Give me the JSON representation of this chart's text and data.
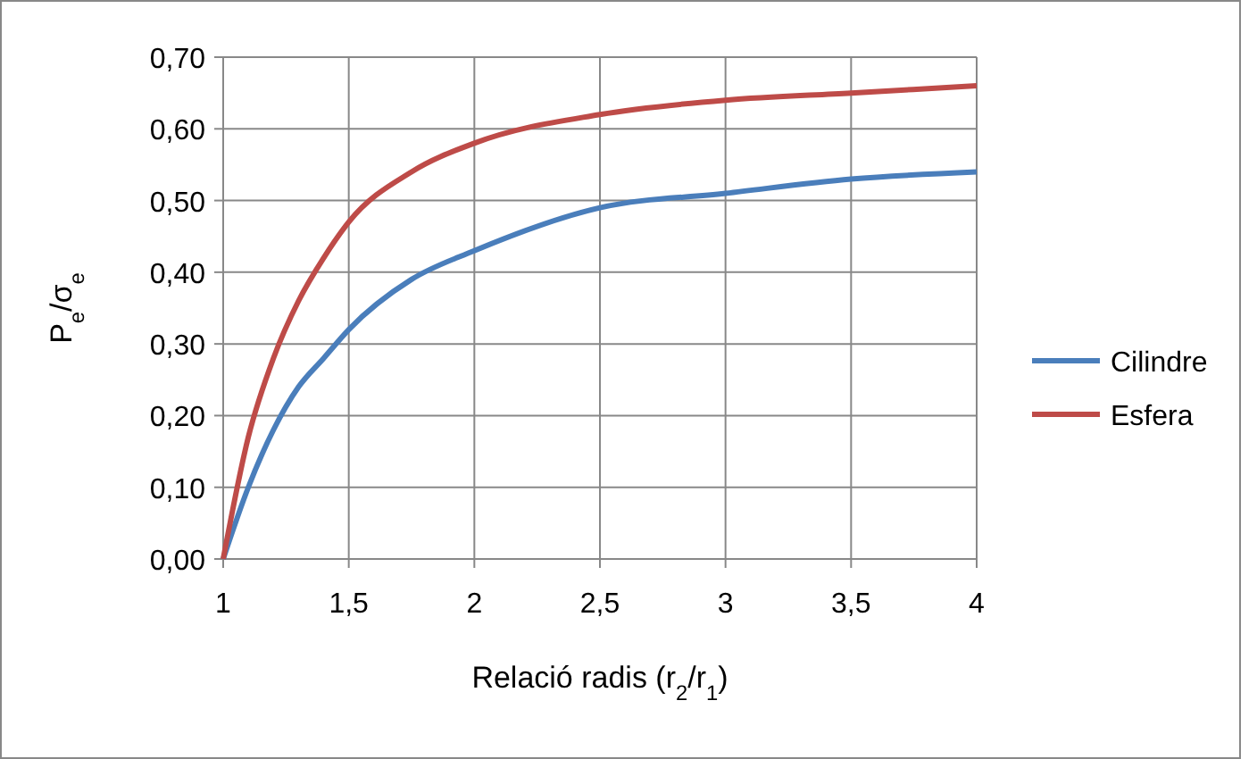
{
  "chart_data": {
    "type": "line",
    "xlabel": "Relació radis (r$_{2}$/r$_{1}$)",
    "ylabel": "P$_{e}$/σ$_{e}$",
    "x": [
      1,
      1.1,
      1.2,
      1.3,
      1.4,
      1.5,
      1.75,
      2,
      2.5,
      3,
      3.5,
      4
    ],
    "series": [
      {
        "name": "Cilindre",
        "color": "#4a7ebb",
        "values": [
          0,
          0.1,
          0.18,
          0.24,
          0.28,
          0.32,
          0.39,
          0.43,
          0.49,
          0.51,
          0.53,
          0.54
        ]
      },
      {
        "name": "Esfera",
        "color": "#be4b48",
        "values": [
          0,
          0.17,
          0.28,
          0.36,
          0.42,
          0.47,
          0.54,
          0.58,
          0.62,
          0.64,
          0.65,
          0.66
        ]
      }
    ],
    "xlim": [
      1,
      4
    ],
    "xticks": [
      1,
      {
        "value": 1.5,
        "label": "1,5"
      },
      2,
      {
        "value": 2.5,
        "label": "2,5"
      },
      3,
      {
        "value": 3.5,
        "label": "3,5"
      },
      4
    ],
    "ylim": [
      0,
      0.7
    ],
    "yticks": [
      {
        "value": 0,
        "label": "0,00"
      },
      {
        "value": 0.1,
        "label": "0,10"
      },
      {
        "value": 0.2,
        "label": "0,20"
      },
      {
        "value": 0.3,
        "label": "0,30"
      },
      {
        "value": 0.4,
        "label": "0,40"
      },
      {
        "value": 0.5,
        "label": "0,50"
      },
      {
        "value": 0.6,
        "label": "0,60"
      },
      {
        "value": 0.7,
        "label": "0,70"
      }
    ],
    "grid": true,
    "legend": "right",
    "marker": "none",
    "line_style": "solid"
  }
}
